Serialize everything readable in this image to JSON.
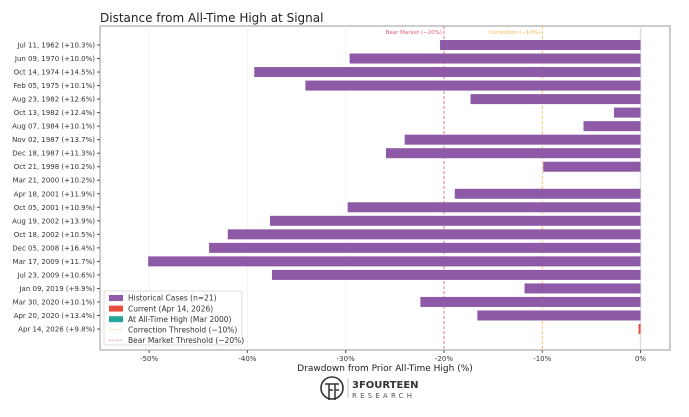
{
  "chart_data": {
    "type": "bar",
    "orientation": "horizontal",
    "title": "Distance from All-Time High at Signal",
    "xlabel": "Drawdown from Prior All-Time High (%)",
    "ylabel": "",
    "xlim": [
      -55,
      3
    ],
    "xticks": [
      -50,
      -40,
      -30,
      -20,
      -10,
      0
    ],
    "xtick_labels": [
      "-50%",
      "-40%",
      "-30%",
      "-20%",
      "-10%",
      "0%"
    ],
    "categories": [
      "Jul 11, 1962  (+10.3%)",
      "Jun 09, 1970  (+10.0%)",
      "Oct 14, 1974  (+14.5%)",
      "Feb 05, 1975  (+10.1%)",
      "Aug 23, 1982  (+12.6%)",
      "Oct 13, 1982  (+12.4%)",
      "Aug 07, 1984  (+10.1%)",
      "Nov 02, 1987  (+13.7%)",
      "Dec 18, 1987  (+11.3%)",
      "Oct 21, 1998  (+10.2%)",
      "Mar 21, 2000  (+10.2%)",
      "Apr 18, 2001  (+11.9%)",
      "Oct 05, 2001  (+10.9%)",
      "Aug 19, 2002  (+13.9%)",
      "Oct 18, 2002  (+10.5%)",
      "Dec 05, 2008  (+16.4%)",
      "Mar 17, 2009  (+11.7%)",
      "Jul 23, 2009  (+10.6%)",
      "Jan 09, 2019  (+9.9%)",
      "Mar 30, 2020  (+10.1%)",
      "Apr 20, 2020  (+13.4%)",
      "Apr 14, 2026  (+9.8%)"
    ],
    "values": [
      -20.4,
      -29.6,
      -39.3,
      -34.1,
      -17.3,
      -2.7,
      -5.8,
      -24.0,
      -25.9,
      -9.9,
      0.0,
      -18.9,
      -29.8,
      -37.7,
      -42.0,
      -43.9,
      -50.1,
      -37.5,
      -11.8,
      -22.4,
      -16.6,
      -0.2
    ],
    "bar_groups": [
      "historical",
      "historical",
      "historical",
      "historical",
      "historical",
      "historical",
      "historical",
      "historical",
      "historical",
      "historical",
      "ath",
      "historical",
      "historical",
      "historical",
      "historical",
      "historical",
      "historical",
      "historical",
      "historical",
      "historical",
      "historical",
      "current"
    ],
    "thresholds": [
      {
        "value": -20,
        "label": "Bear Market (−20%)",
        "color": "#e06070"
      },
      {
        "value": -10,
        "label": "Correction (−10%)",
        "color": "#f5b84a"
      }
    ],
    "colors": {
      "historical": "#8e5aa8",
      "current": "#e74c3c",
      "ath": "#26a69a"
    },
    "legend": {
      "placement": "lower-left",
      "entries": [
        {
          "label": "Historical Cases (n=21)",
          "kind": "historical"
        },
        {
          "label": "Current (Apr 14, 2026)",
          "kind": "current"
        },
        {
          "label": "At All-Time High (Mar 2000)",
          "kind": "ath"
        },
        {
          "label": "Correction Threshold (−10%)",
          "kind": "correction"
        },
        {
          "label": "Bear Market Threshold (−20%)",
          "kind": "bear"
        }
      ]
    }
  },
  "logo": {
    "name": "3FOURTEEN",
    "sub": "RESEARCH"
  }
}
